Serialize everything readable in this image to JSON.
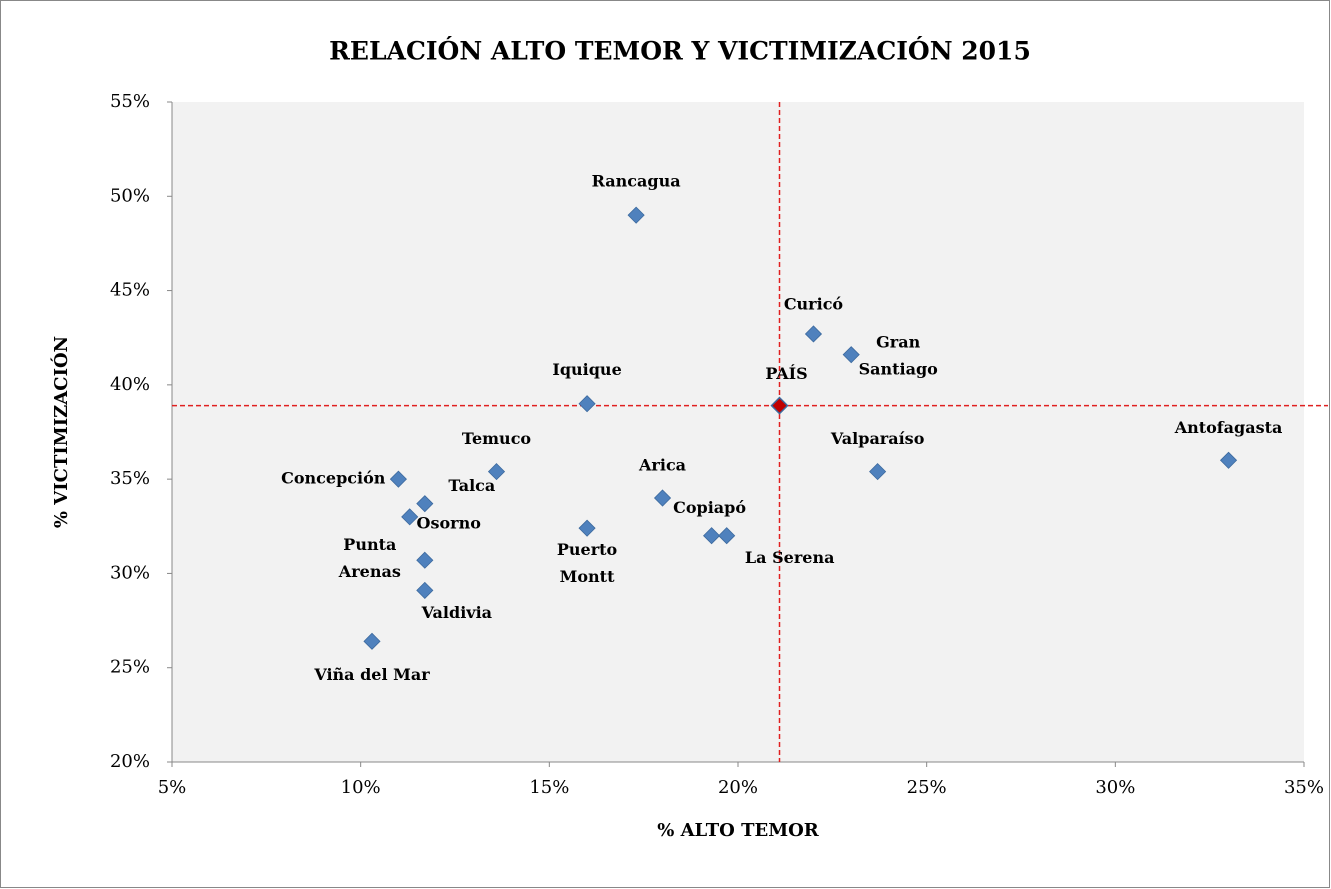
{
  "chart_data": {
    "type": "scatter",
    "title": "RELACIÓN ALTO TEMOR Y VICTIMIZACIÓN 2015",
    "x_label": "% ALTO TEMOR",
    "y_label": "% VICTIMIZACIÓN",
    "xlim": [
      5,
      35
    ],
    "ylim": [
      20,
      55
    ],
    "xticks": [
      {
        "value": 5,
        "label": "5%"
      },
      {
        "value": 10,
        "label": "10%"
      },
      {
        "value": 15,
        "label": "15%"
      },
      {
        "value": 20,
        "label": "20%"
      },
      {
        "value": 25,
        "label": "25%"
      },
      {
        "value": 30,
        "label": "30%"
      },
      {
        "value": 35,
        "label": "35%"
      }
    ],
    "yticks": [
      {
        "value": 20,
        "label": "20%"
      },
      {
        "value": 25,
        "label": "25%"
      },
      {
        "value": 30,
        "label": "30%"
      },
      {
        "value": 35,
        "label": "35%"
      },
      {
        "value": 40,
        "label": "40%"
      },
      {
        "value": 45,
        "label": "45%"
      },
      {
        "value": 50,
        "label": "50%"
      },
      {
        "value": 55,
        "label": "55%"
      }
    ],
    "color": "#4f81bd",
    "points": [
      {
        "name": "Rancagua",
        "x": 17.3,
        "y": 49.0
      },
      {
        "name": "Curicó",
        "x": 22.0,
        "y": 42.7
      },
      {
        "name": "Gran Santiago",
        "x": 23.0,
        "y": 41.6
      },
      {
        "name": "Iquique",
        "x": 16.0,
        "y": 39.0
      },
      {
        "name": "Antofagasta",
        "x": 33.0,
        "y": 36.0
      },
      {
        "name": "Valparaíso",
        "x": 23.7,
        "y": 35.4
      },
      {
        "name": "Temuco",
        "x": 13.6,
        "y": 35.4
      },
      {
        "name": "Concepción",
        "x": 11.0,
        "y": 35.0
      },
      {
        "name": "Talca",
        "x": 11.7,
        "y": 33.7
      },
      {
        "name": "Osorno",
        "x": 11.3,
        "y": 33.0
      },
      {
        "name": "Arica",
        "x": 18.0,
        "y": 34.0
      },
      {
        "name": "Puerto Montt",
        "x": 16.0,
        "y": 32.4
      },
      {
        "name": "Copiapó",
        "x": 19.3,
        "y": 32.0
      },
      {
        "name": "La Serena",
        "x": 19.7,
        "y": 32.0
      },
      {
        "name": "Punta Arenas",
        "x": 11.7,
        "y": 30.7
      },
      {
        "name": "Valdivia",
        "x": 11.7,
        "y": 29.1
      },
      {
        "name": "Viña del Mar",
        "x": 10.3,
        "y": 26.4
      }
    ],
    "reference": {
      "name": "PAÍS",
      "x": 21.1,
      "y": 38.9,
      "color": "#c00000",
      "line_color": "#e02020"
    }
  }
}
